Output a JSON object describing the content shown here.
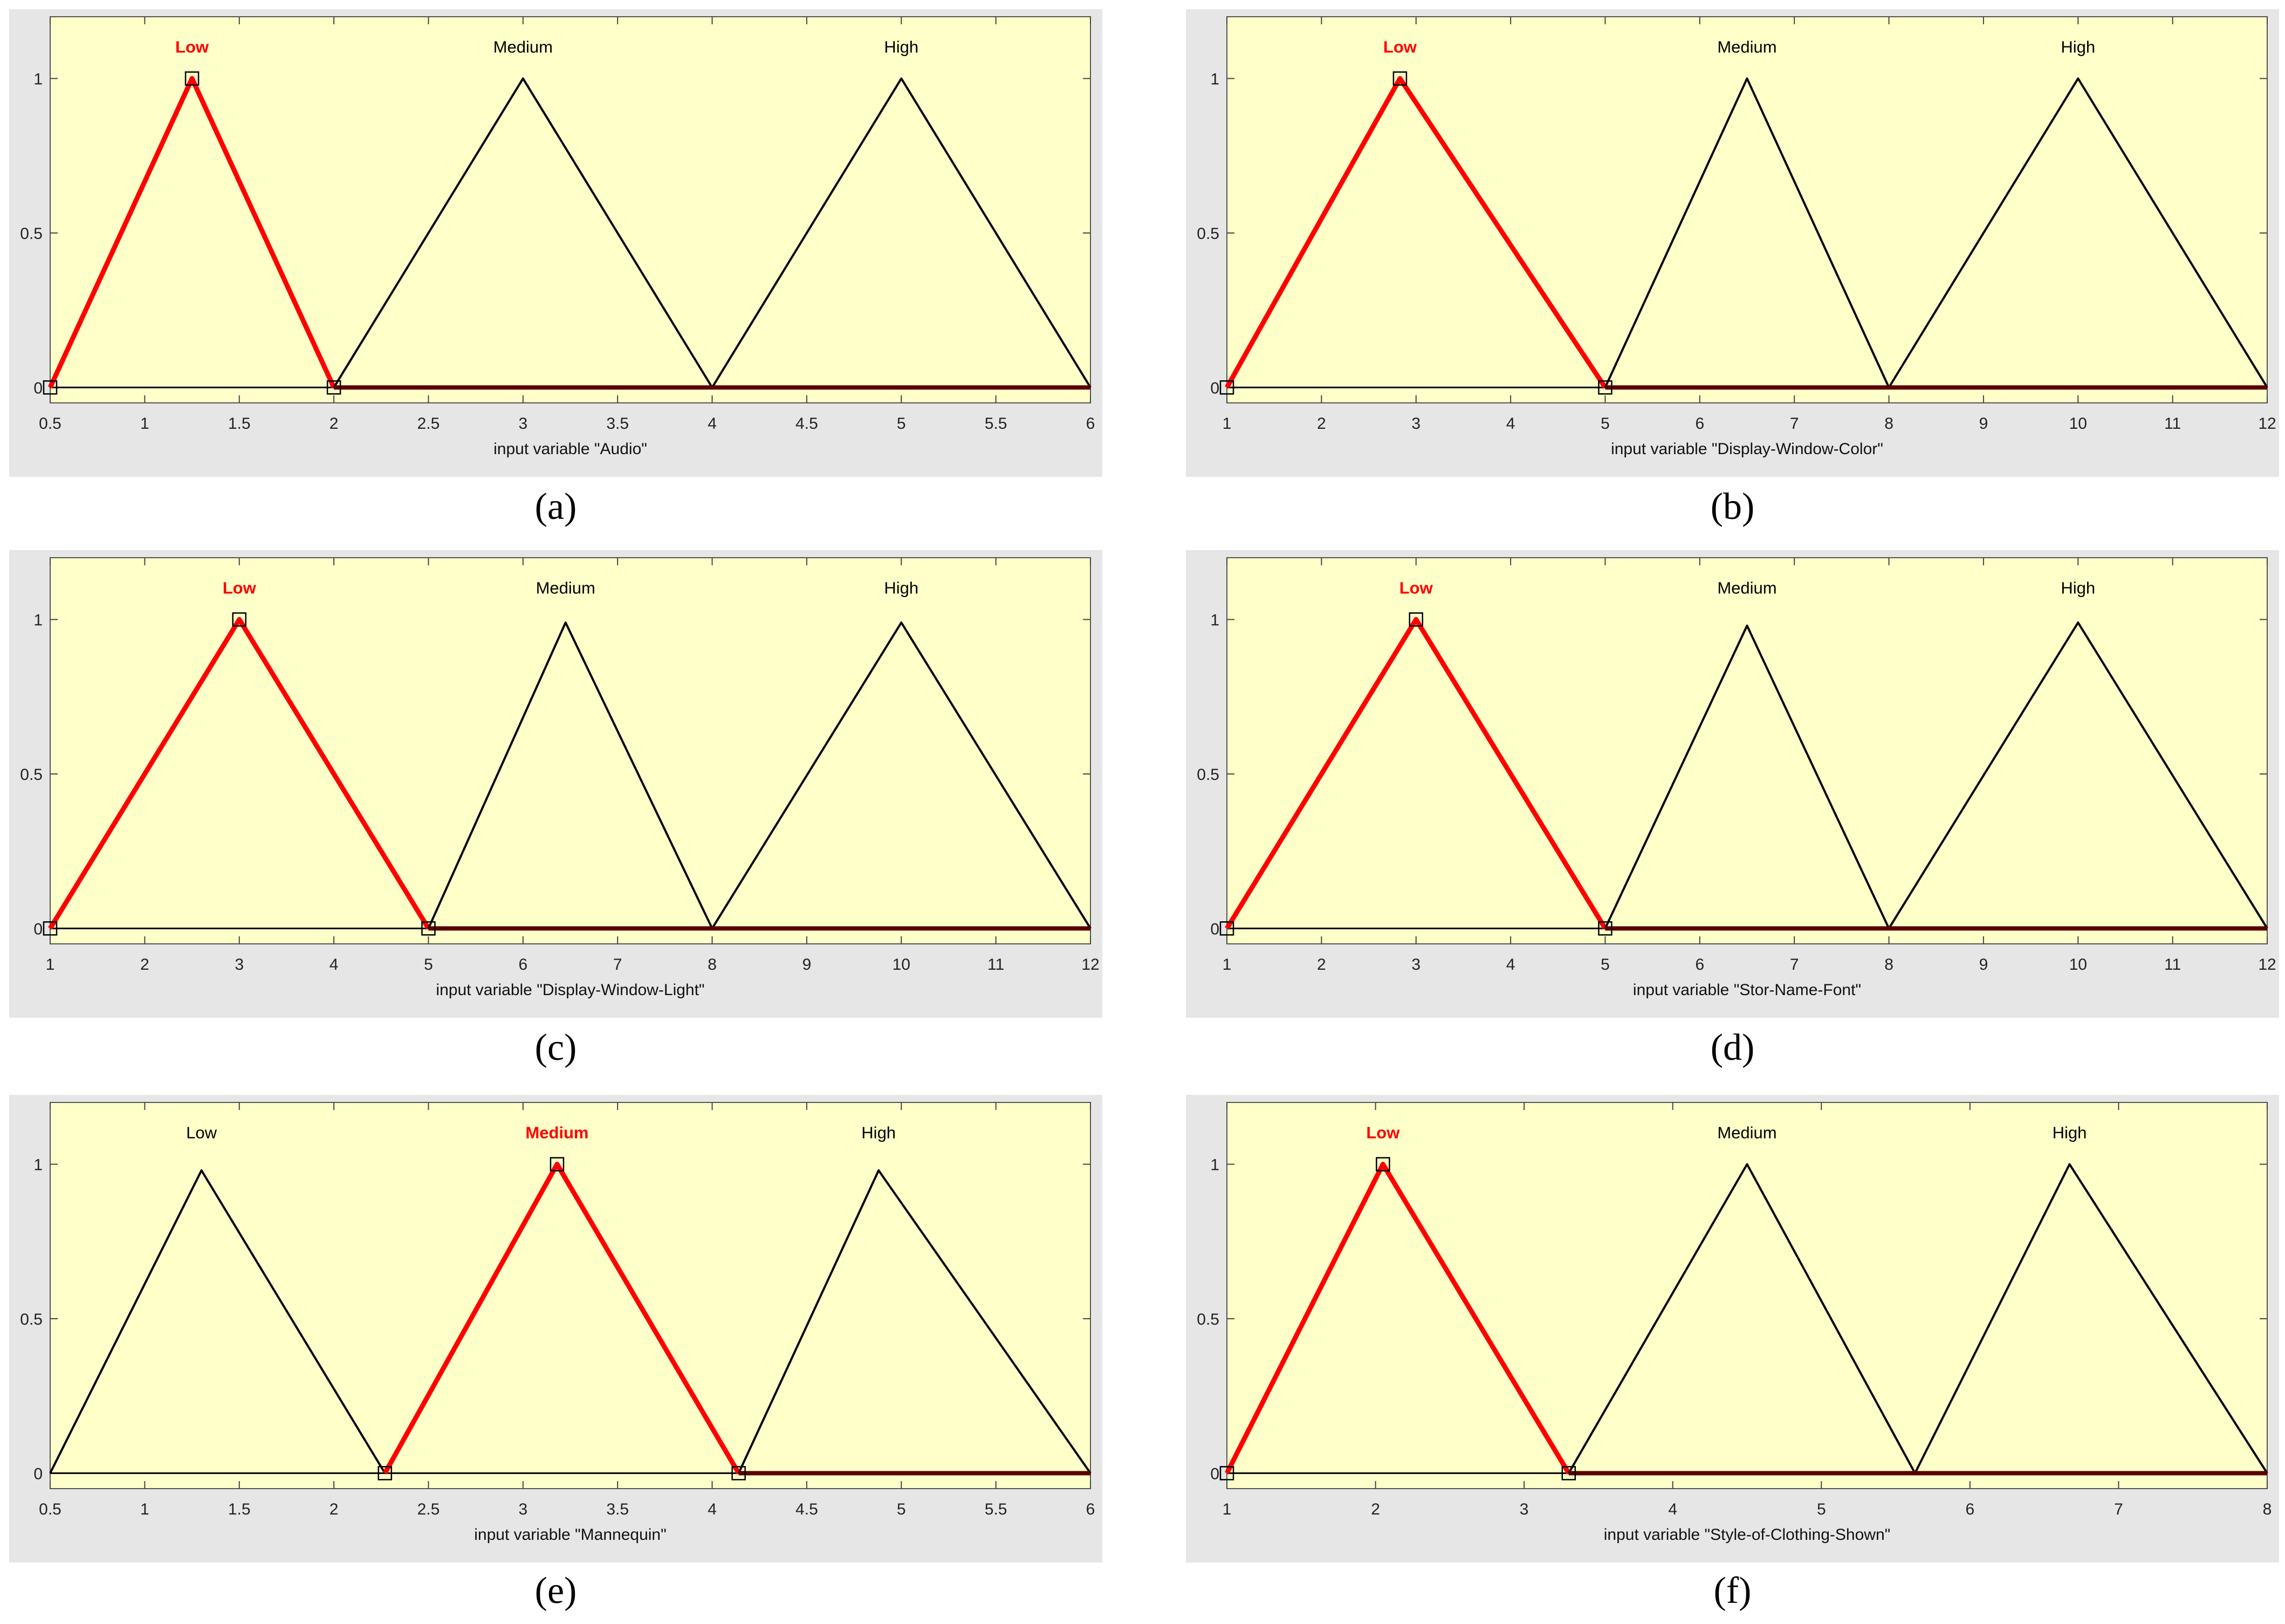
{
  "chart_data": [
    {
      "type": "line",
      "panel_label": "(a)",
      "xlabel": "input variable \"Audio\"",
      "xlim": [
        0.5,
        6
      ],
      "ylim": [
        -0.05,
        1.2
      ],
      "xticks": [
        "0.5",
        "1",
        "1.5",
        "2",
        "2.5",
        "3",
        "3.5",
        "4",
        "4.5",
        "5",
        "5.5",
        "6"
      ],
      "yticks": [
        "0",
        "0.5",
        "1"
      ],
      "highlighted": "Low",
      "series": [
        {
          "name": "Low",
          "x": [
            0.5,
            1.25,
            2
          ],
          "y": [
            0,
            1,
            0
          ]
        },
        {
          "name": "Medium",
          "x": [
            2,
            3,
            4
          ],
          "y": [
            0,
            1,
            0
          ]
        },
        {
          "name": "High",
          "x": [
            4,
            5,
            6
          ],
          "y": [
            0,
            1,
            0
          ]
        }
      ]
    },
    {
      "type": "line",
      "panel_label": "(b)",
      "xlabel": "input variable \"Display-Window-Color\"",
      "xlim": [
        1,
        12
      ],
      "ylim": [
        -0.05,
        1.2
      ],
      "xticks": [
        "1",
        "2",
        "3",
        "4",
        "5",
        "6",
        "7",
        "8",
        "9",
        "10",
        "11",
        "12"
      ],
      "yticks": [
        "0",
        "0.5",
        "1"
      ],
      "highlighted": "Low",
      "series": [
        {
          "name": "Low",
          "x": [
            1,
            2.83,
            5
          ],
          "y": [
            0,
            1,
            0
          ]
        },
        {
          "name": "Medium",
          "x": [
            5,
            6.5,
            8
          ],
          "y": [
            0,
            1,
            0
          ]
        },
        {
          "name": "High",
          "x": [
            8,
            10,
            12
          ],
          "y": [
            0,
            1,
            0
          ]
        }
      ]
    },
    {
      "type": "line",
      "panel_label": "(c)",
      "xlabel": "input variable \"Display-Window-Light\"",
      "xlim": [
        1,
        12
      ],
      "ylim": [
        -0.05,
        1.2
      ],
      "xticks": [
        "1",
        "2",
        "3",
        "4",
        "5",
        "6",
        "7",
        "8",
        "9",
        "10",
        "11",
        "12"
      ],
      "yticks": [
        "0",
        "0.5",
        "1"
      ],
      "highlighted": "Low",
      "series": [
        {
          "name": "Low",
          "x": [
            1,
            3,
            5
          ],
          "y": [
            0,
            1,
            0
          ]
        },
        {
          "name": "Medium",
          "x": [
            5,
            6.45,
            8
          ],
          "y": [
            0,
            0.99,
            0
          ]
        },
        {
          "name": "High",
          "x": [
            8,
            10,
            12
          ],
          "y": [
            0,
            0.99,
            0
          ]
        }
      ]
    },
    {
      "type": "line",
      "panel_label": "(d)",
      "xlabel": "input variable \"Stor-Name-Font\"",
      "xlim": [
        1,
        12
      ],
      "ylim": [
        -0.05,
        1.2
      ],
      "xticks": [
        "1",
        "2",
        "3",
        "4",
        "5",
        "6",
        "7",
        "8",
        "9",
        "10",
        "11",
        "12"
      ],
      "yticks": [
        "0",
        "0.5",
        "1"
      ],
      "highlighted": "Low",
      "series": [
        {
          "name": "Low",
          "x": [
            1,
            3,
            5
          ],
          "y": [
            0,
            1,
            0
          ]
        },
        {
          "name": "Medium",
          "x": [
            5,
            6.5,
            8
          ],
          "y": [
            0,
            0.98,
            0
          ]
        },
        {
          "name": "High",
          "x": [
            8,
            10,
            12
          ],
          "y": [
            0,
            0.99,
            0
          ]
        }
      ]
    },
    {
      "type": "line",
      "panel_label": "(e)",
      "xlabel": "input variable \"Mannequin\"",
      "xlim": [
        0.5,
        6
      ],
      "ylim": [
        -0.05,
        1.2
      ],
      "xticks": [
        "0.5",
        "1",
        "1.5",
        "2",
        "2.5",
        "3",
        "3.5",
        "4",
        "4.5",
        "5",
        "5.5",
        "6"
      ],
      "yticks": [
        "0",
        "0.5",
        "1"
      ],
      "highlighted": "Medium",
      "series": [
        {
          "name": "Low",
          "x": [
            0.5,
            1.3,
            2.27
          ],
          "y": [
            0,
            0.98,
            0
          ]
        },
        {
          "name": "Medium",
          "x": [
            2.27,
            3.18,
            4.14
          ],
          "y": [
            0,
            1,
            0
          ]
        },
        {
          "name": "High",
          "x": [
            4.14,
            4.88,
            6
          ],
          "y": [
            0,
            0.98,
            0
          ]
        }
      ]
    },
    {
      "type": "line",
      "panel_label": "(f)",
      "xlabel": "input variable \"Style-of-Clothing-Shown\"",
      "xlim": [
        1,
        8
      ],
      "ylim": [
        -0.05,
        1.2
      ],
      "xticks": [
        "1",
        "2",
        "3",
        "4",
        "5",
        "6",
        "7",
        "8"
      ],
      "yticks": [
        "0",
        "0.5",
        "1"
      ],
      "highlighted": "Low",
      "series": [
        {
          "name": "Low",
          "x": [
            1,
            2.05,
            3.3
          ],
          "y": [
            0,
            1,
            0
          ]
        },
        {
          "name": "Medium",
          "x": [
            3.3,
            4.5,
            5.63
          ],
          "y": [
            0,
            1,
            0
          ]
        },
        {
          "name": "High",
          "x": [
            5.63,
            6.67,
            8
          ],
          "y": [
            0,
            1,
            0
          ]
        }
      ]
    }
  ],
  "colors": {
    "plot_background": "#ffffc9",
    "panel_background": "#e6e6e6",
    "highlight": "#ff0000",
    "line": "#000000"
  }
}
